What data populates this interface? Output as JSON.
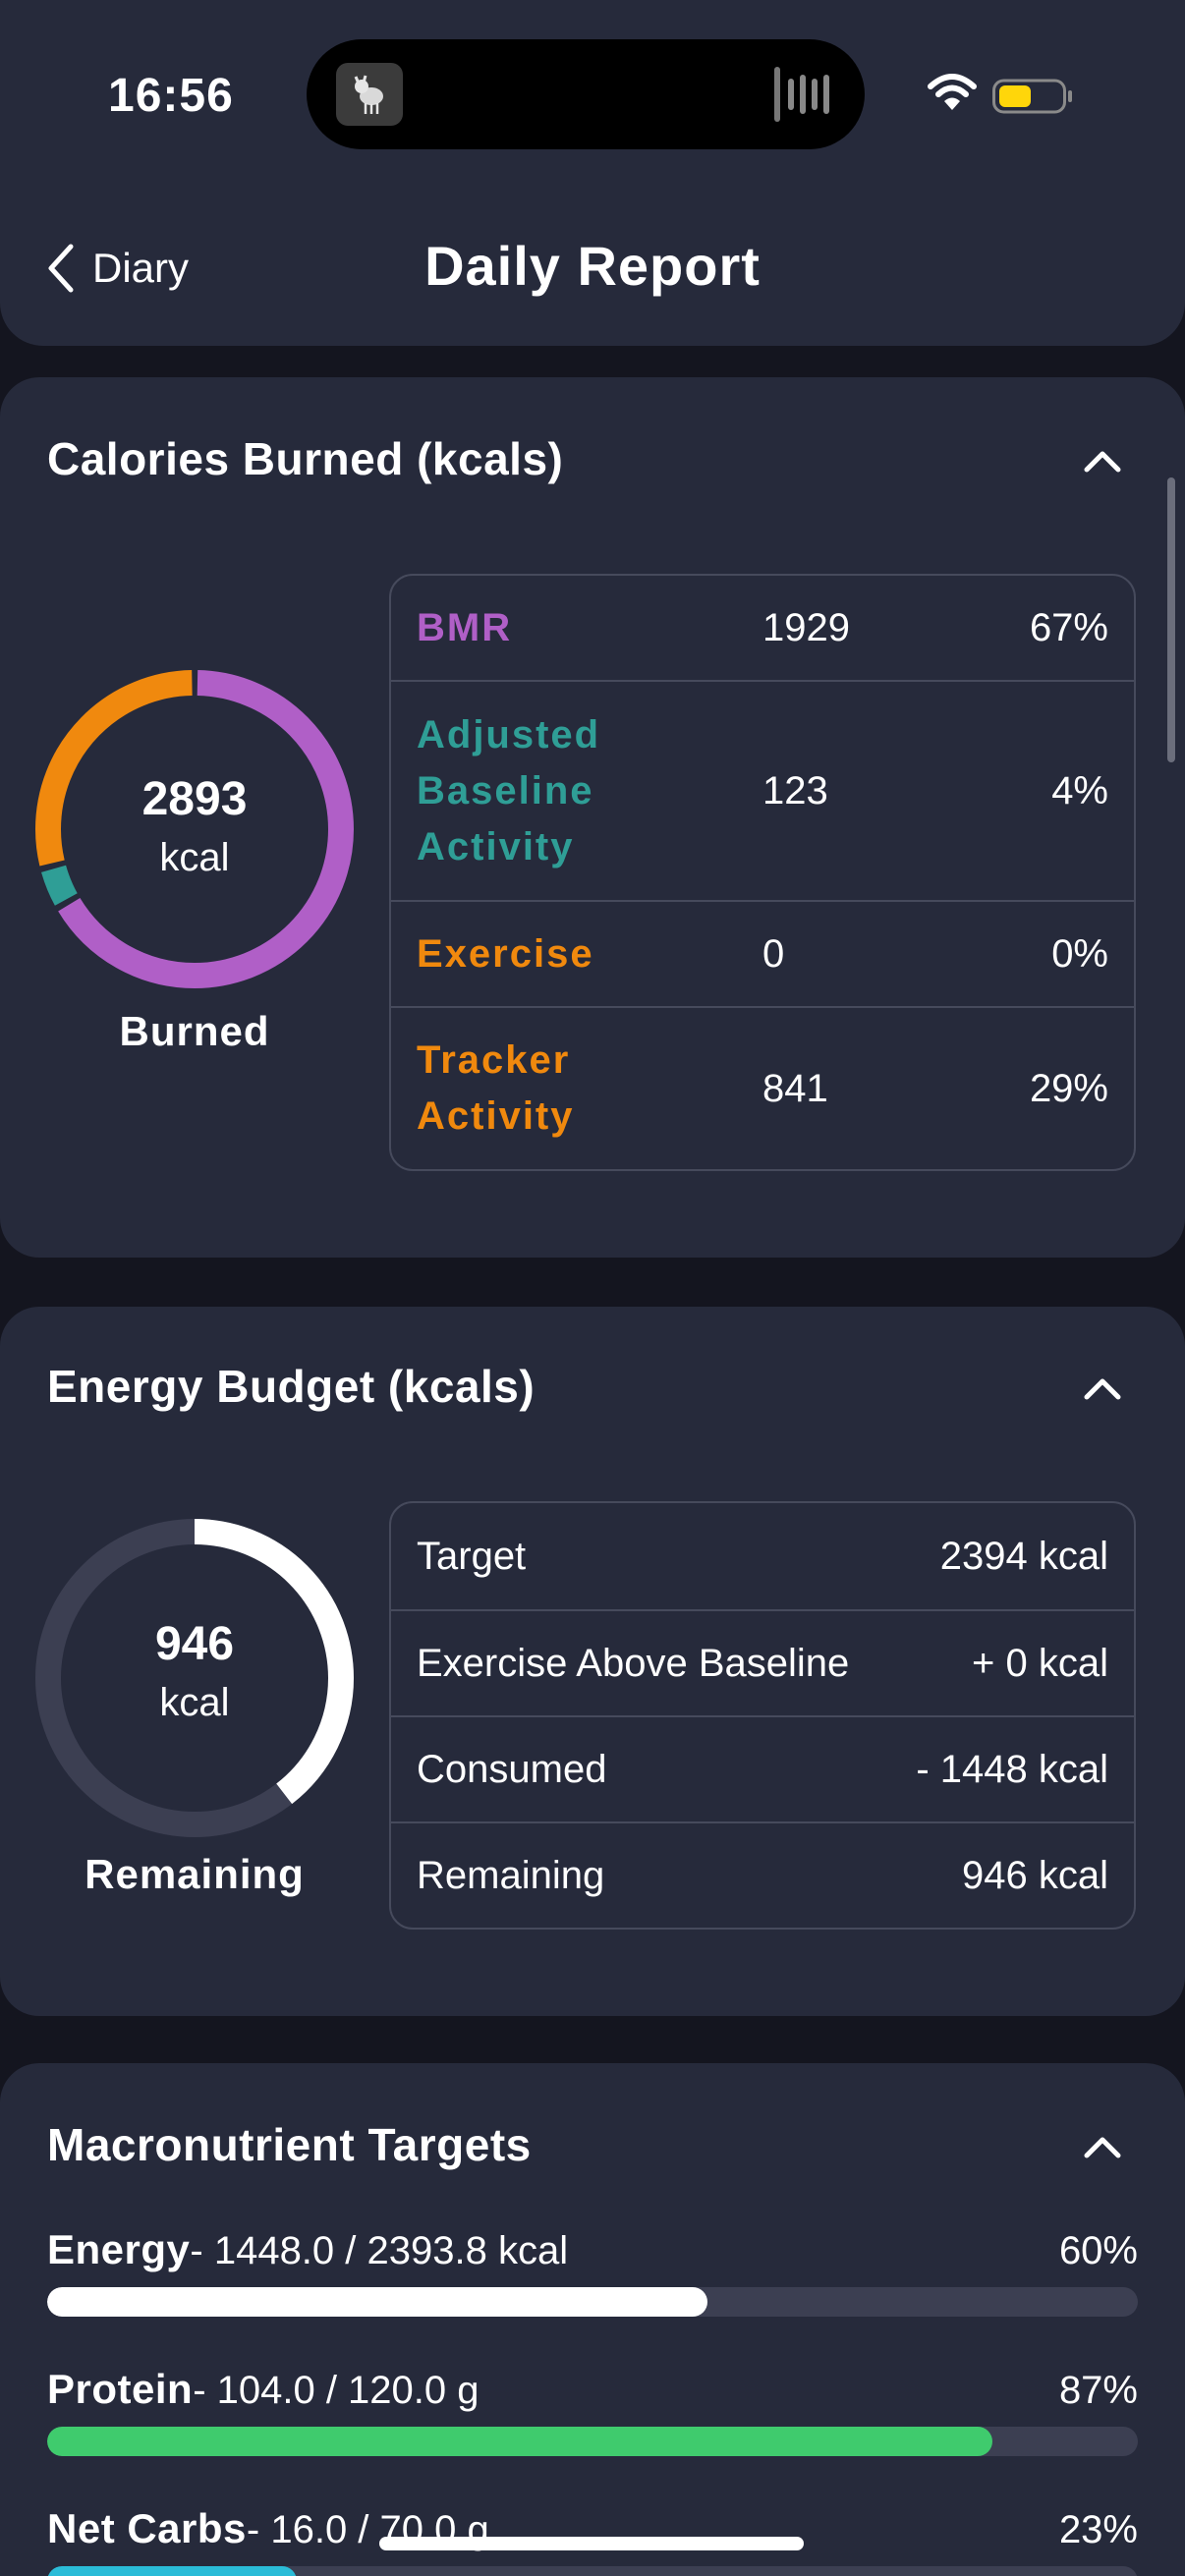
{
  "status_bar": {
    "time": "16:56"
  },
  "nav": {
    "back_label": "Diary",
    "title": "Daily Report"
  },
  "calories_burned": {
    "title": "Calories Burned (kcals)",
    "total": "2893",
    "unit": "kcal",
    "caption": "Burned",
    "rows": [
      {
        "name": "BMR",
        "value": "1929",
        "pct": "67%",
        "color": "#b05fc7"
      },
      {
        "name": "Adjusted Baseline Activity",
        "value": "123",
        "pct": "4%",
        "color": "#2f9e96"
      },
      {
        "name": "Exercise",
        "value": "0",
        "pct": "0%",
        "color": "#f0890e"
      },
      {
        "name": "Tracker Activity",
        "value": "841",
        "pct": "29%",
        "color": "#f0890e"
      }
    ]
  },
  "energy_budget": {
    "title": "Energy Budget (kcals)",
    "remaining_value": "946",
    "unit": "kcal",
    "caption": "Remaining",
    "remaining_fraction": 0.395,
    "rows": [
      {
        "label": "Target",
        "value": "2394 kcal"
      },
      {
        "label": "Exercise Above Baseline",
        "value": "+ 0 kcal"
      },
      {
        "label": "Consumed",
        "value": "- 1448 kcal"
      },
      {
        "label": "Remaining",
        "value": "946 kcal"
      }
    ]
  },
  "macronutrients": {
    "title": "Macronutrient Targets",
    "items": [
      {
        "name": "Energy",
        "detail": "- 1448.0 / 2393.8 kcal",
        "pct": "60%",
        "fraction": 0.605,
        "color": "#ffffff"
      },
      {
        "name": "Protein",
        "detail": "- 104.0 / 120.0 g",
        "pct": "87%",
        "fraction": 0.867,
        "color": "#3fcb6d"
      },
      {
        "name": "Net Carbs",
        "detail": "- 16.0 / 70.0 g",
        "pct": "23%",
        "fraction": 0.229,
        "color": "#2bbcd8"
      }
    ]
  }
}
